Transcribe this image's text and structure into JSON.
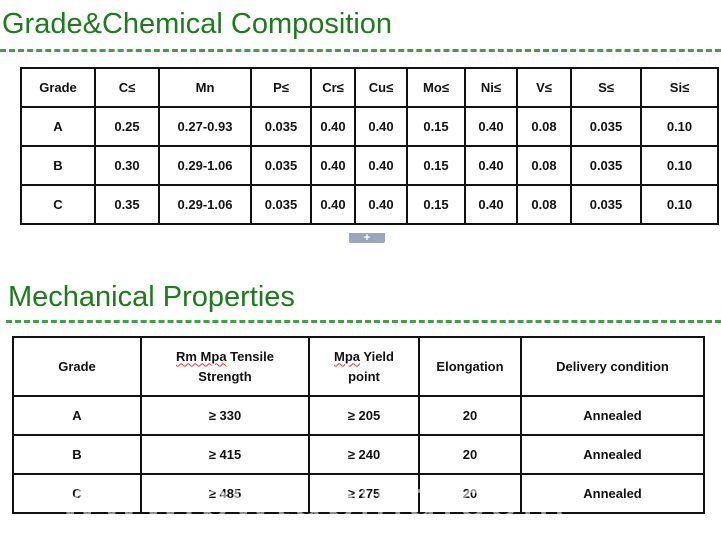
{
  "chemical": {
    "title": "Grade&Chemical Composition",
    "headers": [
      "Grade",
      "C≤",
      "Mn",
      "P≤",
      "Cr≤",
      "Cu≤",
      "Mo≤",
      "Ni≤",
      "V≤",
      "S≤",
      "Si≤"
    ],
    "rows": [
      [
        "A",
        "0.25",
        "0.27-0.93",
        "0.035",
        "0.40",
        "0.40",
        "0.15",
        "0.40",
        "0.08",
        "0.035",
        "0.10"
      ],
      [
        "B",
        "0.30",
        "0.29-1.06",
        "0.035",
        "0.40",
        "0.40",
        "0.15",
        "0.40",
        "0.08",
        "0.035",
        "0.10"
      ],
      [
        "C",
        "0.35",
        "0.29-1.06",
        "0.035",
        "0.40",
        "0.40",
        "0.15",
        "0.40",
        "0.08",
        "0.035",
        "0.10"
      ]
    ],
    "expand_glyph": "+"
  },
  "mechanical": {
    "title": "Mechanical Properties",
    "headers": {
      "grade": "Grade",
      "tensile_line1_word": "Rm Mpa",
      "tensile_line1_rest": " Tensile",
      "tensile_line2": "Strength",
      "yield_line1_word": "Mpa",
      "yield_line1_rest": " Yield",
      "yield_line2": "point",
      "elongation": "Elongation",
      "delivery": "Delivery condition"
    },
    "rows": [
      [
        "A",
        "≥ 330",
        "≥ 205",
        "20",
        "Annealed"
      ],
      [
        "B",
        "≥ 415",
        "≥ 240",
        "20",
        "Annealed"
      ],
      [
        "C",
        "≥ 485",
        "≥ 275",
        "20",
        "Annealed"
      ]
    ]
  },
  "watermark": "www.bwtubing.com"
}
